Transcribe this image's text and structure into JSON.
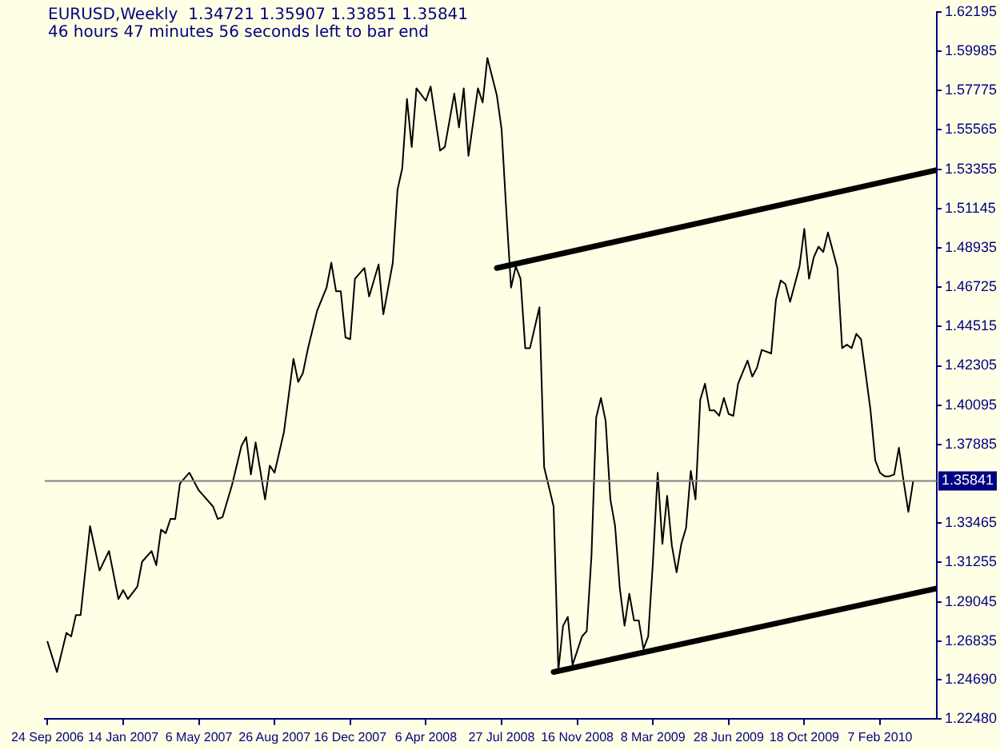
{
  "chart_data": {
    "type": "line",
    "title": "EURUSD,Weekly  1.34721 1.35907 1.33851 1.35841",
    "subtitle": "46 hours 47 minutes 56 seconds left to bar end",
    "xlim": [
      "2006-09-20",
      "2010-05-02"
    ],
    "xticks": [
      {
        "value": "2006-09-24",
        "label": "24 Sep 2006"
      },
      {
        "value": "2007-01-14",
        "label": "14 Jan 2007"
      },
      {
        "value": "2007-05-06",
        "label": "6 May 2007"
      },
      {
        "value": "2007-08-26",
        "label": "26 Aug 2007"
      },
      {
        "value": "2007-12-16",
        "label": "16 Dec 2007"
      },
      {
        "value": "2008-04-06",
        "label": "6 Apr 2008"
      },
      {
        "value": "2008-07-27",
        "label": "27 Jul 2008"
      },
      {
        "value": "2008-11-16",
        "label": "16 Nov 2008"
      },
      {
        "value": "2009-03-08",
        "label": "8 Mar 2009"
      },
      {
        "value": "2009-06-28",
        "label": "28 Jun 2009"
      },
      {
        "value": "2009-10-18",
        "label": "18 Oct 2009"
      },
      {
        "value": "2010-02-07",
        "label": "7 Feb 2010"
      }
    ],
    "ylim": [
      1.2248,
      1.62195
    ],
    "yticks": [
      {
        "value": 1.2248,
        "label": "1.22480"
      },
      {
        "value": 1.2469,
        "label": "1.24690"
      },
      {
        "value": 1.26835,
        "label": "1.26835"
      },
      {
        "value": 1.29045,
        "label": "1.29045"
      },
      {
        "value": 1.31255,
        "label": "1.31255"
      },
      {
        "value": 1.33465,
        "label": "1.33465"
      },
      {
        "value": 1.37885,
        "label": "1.37885"
      },
      {
        "value": 1.40095,
        "label": "1.40095"
      },
      {
        "value": 1.42305,
        "label": "1.42305"
      },
      {
        "value": 1.44515,
        "label": "1.44515"
      },
      {
        "value": 1.46725,
        "label": "1.46725"
      },
      {
        "value": 1.48935,
        "label": "1.48935"
      },
      {
        "value": 1.51145,
        "label": "1.51145"
      },
      {
        "value": 1.53355,
        "label": "1.53355"
      },
      {
        "value": 1.55565,
        "label": "1.55565"
      },
      {
        "value": 1.57775,
        "label": "1.57775"
      },
      {
        "value": 1.59985,
        "label": "1.59985"
      },
      {
        "value": 1.62195,
        "label": "1.62195"
      }
    ],
    "grid": false,
    "legend": false,
    "marker": "none",
    "line_style": "solid",
    "ref_lines": [
      {
        "axis": "y",
        "value": 1.35841,
        "label": "1.35841",
        "color": "#808080"
      }
    ],
    "series": [
      {
        "color": "#000000",
        "x": [
          "2006-09-24",
          "2006-10-08",
          "2006-10-22",
          "2006-10-29",
          "2006-11-05",
          "2006-11-12",
          "2006-11-26",
          "2006-12-10",
          "2006-12-24",
          "2007-01-07",
          "2007-01-14",
          "2007-01-21",
          "2007-02-04",
          "2007-02-11",
          "2007-02-25",
          "2007-03-04",
          "2007-03-11",
          "2007-03-18",
          "2007-03-25",
          "2007-04-01",
          "2007-04-08",
          "2007-04-22",
          "2007-05-06",
          "2007-05-27",
          "2007-06-03",
          "2007-06-10",
          "2007-06-24",
          "2007-07-08",
          "2007-07-15",
          "2007-07-22",
          "2007-07-29",
          "2007-08-12",
          "2007-08-19",
          "2007-08-26",
          "2007-09-09",
          "2007-09-23",
          "2007-09-30",
          "2007-10-07",
          "2007-10-14",
          "2007-10-28",
          "2007-11-11",
          "2007-11-18",
          "2007-11-25",
          "2007-12-02",
          "2007-12-09",
          "2007-12-16",
          "2007-12-23",
          "2008-01-06",
          "2008-01-13",
          "2008-01-27",
          "2008-02-03",
          "2008-02-17",
          "2008-02-24",
          "2008-03-02",
          "2008-03-09",
          "2008-03-16",
          "2008-03-23",
          "2008-04-06",
          "2008-04-13",
          "2008-04-27",
          "2008-05-04",
          "2008-05-18",
          "2008-05-25",
          "2008-06-01",
          "2008-06-08",
          "2008-06-22",
          "2008-06-29",
          "2008-07-06",
          "2008-07-20",
          "2008-07-27",
          "2008-08-03",
          "2008-08-10",
          "2008-08-17",
          "2008-08-24",
          "2008-08-31",
          "2008-09-07",
          "2008-09-21",
          "2008-09-28",
          "2008-10-12",
          "2008-10-19",
          "2008-10-26",
          "2008-11-02",
          "2008-11-09",
          "2008-11-23",
          "2008-11-30",
          "2008-12-07",
          "2008-12-14",
          "2008-12-21",
          "2008-12-28",
          "2009-01-04",
          "2009-01-11",
          "2009-01-18",
          "2009-01-25",
          "2009-02-01",
          "2009-02-08",
          "2009-02-15",
          "2009-02-22",
          "2009-03-01",
          "2009-03-08",
          "2009-03-15",
          "2009-03-22",
          "2009-03-29",
          "2009-04-05",
          "2009-04-12",
          "2009-04-19",
          "2009-04-26",
          "2009-05-03",
          "2009-05-10",
          "2009-05-17",
          "2009-05-24",
          "2009-05-31",
          "2009-06-07",
          "2009-06-14",
          "2009-06-21",
          "2009-06-28",
          "2009-07-05",
          "2009-07-12",
          "2009-07-26",
          "2009-08-02",
          "2009-08-09",
          "2009-08-16",
          "2009-08-30",
          "2009-09-06",
          "2009-09-13",
          "2009-09-20",
          "2009-09-27",
          "2009-10-11",
          "2009-10-18",
          "2009-10-25",
          "2009-11-01",
          "2009-11-08",
          "2009-11-15",
          "2009-11-22",
          "2009-12-06",
          "2009-12-13",
          "2009-12-20",
          "2009-12-27",
          "2010-01-03",
          "2010-01-10",
          "2010-01-24",
          "2010-01-31",
          "2010-02-07",
          "2010-02-14",
          "2010-02-21",
          "2010-02-28",
          "2010-03-07",
          "2010-03-14",
          "2010-03-21",
          "2010-03-28"
        ],
        "values": [
          1.268,
          1.251,
          1.273,
          1.271,
          1.283,
          1.283,
          1.333,
          1.308,
          1.319,
          1.292,
          1.297,
          1.292,
          1.299,
          1.313,
          1.319,
          1.311,
          1.331,
          1.329,
          1.337,
          1.337,
          1.357,
          1.363,
          1.353,
          1.344,
          1.337,
          1.338,
          1.356,
          1.378,
          1.383,
          1.362,
          1.38,
          1.348,
          1.367,
          1.363,
          1.386,
          1.427,
          1.414,
          1.419,
          1.432,
          1.454,
          1.467,
          1.481,
          1.465,
          1.465,
          1.439,
          1.438,
          1.472,
          1.478,
          1.462,
          1.48,
          1.452,
          1.481,
          1.522,
          1.534,
          1.573,
          1.546,
          1.579,
          1.572,
          1.58,
          1.544,
          1.546,
          1.576,
          1.557,
          1.579,
          1.541,
          1.579,
          1.571,
          1.596,
          1.575,
          1.556,
          1.51,
          1.467,
          1.479,
          1.472,
          1.433,
          1.433,
          1.456,
          1.366,
          1.344,
          1.252,
          1.277,
          1.282,
          1.255,
          1.271,
          1.274,
          1.316,
          1.394,
          1.405,
          1.392,
          1.348,
          1.333,
          1.298,
          1.277,
          1.295,
          1.28,
          1.28,
          1.264,
          1.271,
          1.313,
          1.363,
          1.323,
          1.35,
          1.322,
          1.307,
          1.323,
          1.332,
          1.364,
          1.348,
          1.404,
          1.413,
          1.398,
          1.398,
          1.395,
          1.405,
          1.396,
          1.395,
          1.413,
          1.426,
          1.417,
          1.422,
          1.432,
          1.43,
          1.46,
          1.471,
          1.469,
          1.459,
          1.479,
          1.5,
          1.472,
          1.484,
          1.49,
          1.487,
          1.498,
          1.478,
          1.433,
          1.435,
          1.433,
          1.441,
          1.438,
          1.398,
          1.37,
          1.363,
          1.361,
          1.361,
          1.362,
          1.377,
          1.358,
          1.341,
          1.358
        ]
      },
      {
        "type": "line",
        "color": "#000000",
        "x": [
          "2008-07-20",
          "2010-05-02"
        ],
        "values": [
          1.478,
          1.533
        ]
      },
      {
        "type": "line",
        "color": "#000000",
        "x": [
          "2008-10-12",
          "2010-05-02"
        ],
        "values": [
          1.251,
          1.298
        ]
      }
    ]
  }
}
